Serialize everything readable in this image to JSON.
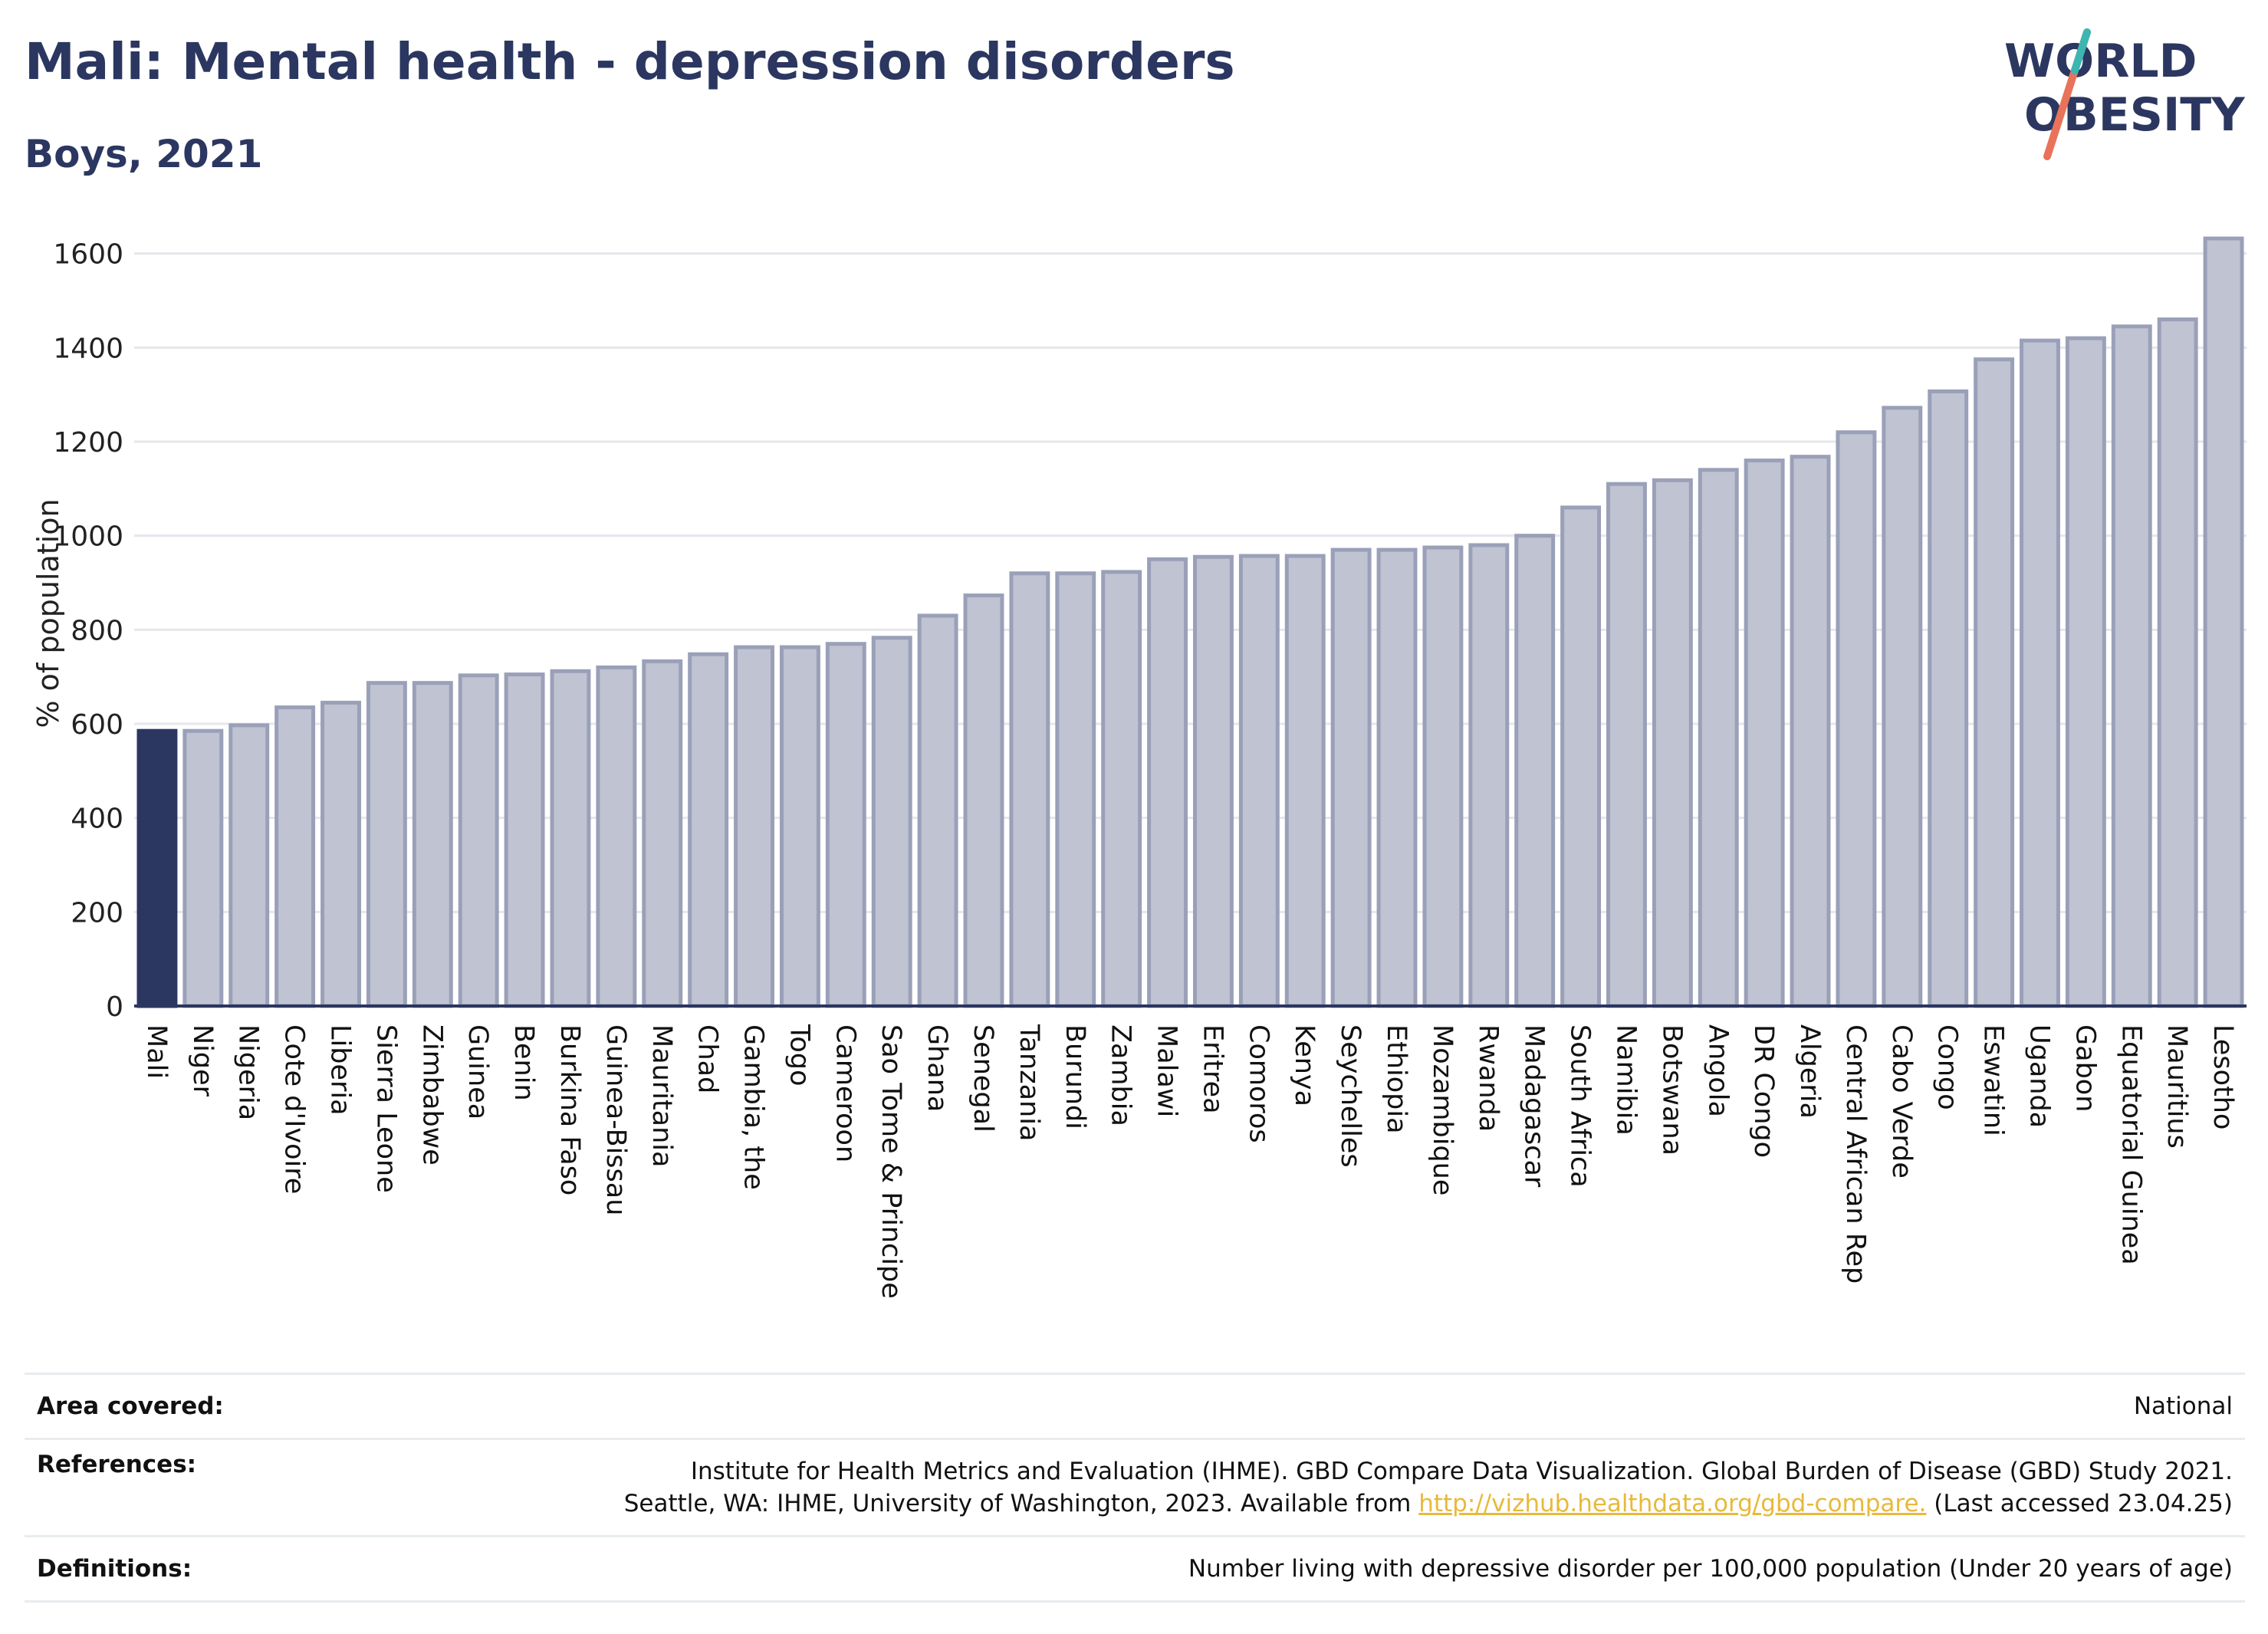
{
  "header": {
    "title": "Mali: Mental health - depression disorders",
    "subtitle": "Boys, 2021"
  },
  "logo": {
    "line1": "WORLD",
    "line2": "OBESITY"
  },
  "colors": {
    "highlight": "#2b3760",
    "bar": "#bfc3d2",
    "bar_border": "#9aa0b8",
    "grid": "#e5e7eb"
  },
  "chart_data": {
    "type": "bar",
    "ylabel": "% of population",
    "ylim": [
      0,
      1650
    ],
    "yticks": [
      0,
      200,
      400,
      600,
      800,
      1000,
      1200,
      1400,
      1600
    ],
    "grid": true,
    "highlight": "Mali",
    "categories": [
      "Mali",
      "Niger",
      "Nigeria",
      "Cote d'Ivoire",
      "Liberia",
      "Sierra Leone",
      "Zimbabwe",
      "Guinea",
      "Benin",
      "Burkina Faso",
      "Guinea-Bissau",
      "Mauritania",
      "Chad",
      "Gambia, the",
      "Togo",
      "Cameroon",
      "Sao Tome & Principe",
      "Ghana",
      "Senegal",
      "Tanzania",
      "Burundi",
      "Zambia",
      "Malawi",
      "Eritrea",
      "Comoros",
      "Kenya",
      "Seychelles",
      "Ethiopia",
      "Mozambique",
      "Rwanda",
      "Madagascar",
      "South Africa",
      "Namibia",
      "Botswana",
      "Angola",
      "DR Congo",
      "Algeria",
      "Central African Rep",
      "Cabo Verde",
      "Congo",
      "Eswatini",
      "Uganda",
      "Gabon",
      "Equatorial Guinea",
      "Mauritius",
      "Lesotho"
    ],
    "values": [
      585,
      585,
      597,
      635,
      645,
      687,
      687,
      703,
      705,
      712,
      720,
      733,
      748,
      763,
      763,
      770,
      783,
      830,
      873,
      920,
      920,
      923,
      950,
      955,
      957,
      957,
      970,
      970,
      975,
      980,
      1000,
      1060,
      1110,
      1118,
      1140,
      1160,
      1168,
      1220,
      1272,
      1307,
      1375,
      1415,
      1420,
      1445,
      1460,
      1632
    ]
  },
  "info": {
    "area_label": "Area covered:",
    "area_value": "National",
    "references_label": "References:",
    "references_line1": "Institute for Health Metrics and Evaluation (IHME). GBD Compare Data Visualization. Global Burden of Disease (GBD) Study 2021.",
    "references_line2_pre": "Seattle, WA: IHME, University of Washington, 2023. Available from",
    "references_link": "http://vizhub.healthdata.org/gbd-compare.",
    "references_line2_post": "(Last accessed 23.04.25)",
    "definitions_label": "Definitions:",
    "definitions_value": "Number living with depressive disorder per 100,000 population (Under 20 years of age)"
  }
}
